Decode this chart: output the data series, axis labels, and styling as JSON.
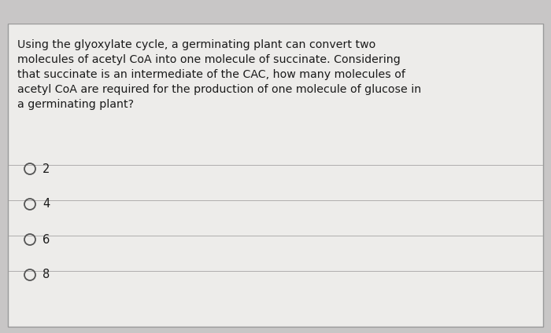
{
  "question_text_lines": [
    "Using the glyoxylate cycle, a germinating plant can convert two",
    "molecules of acetyl CoA into one molecule of succinate. Considering",
    "that succinate is an intermediate of the CAC, how many molecules of",
    "acetyl CoA are required for the production of one molecule of glucose in",
    "a germinating plant?"
  ],
  "options": [
    "2",
    "4",
    "6",
    "8"
  ],
  "background_color": "#c8c6c6",
  "box_color": "#edecea",
  "box_edge_color": "#999999",
  "text_color": "#1a1a1a",
  "divider_color": "#b0aeae",
  "question_fontsize": 10.2,
  "option_fontsize": 10.5,
  "circle_color": "#555555",
  "top_bar_color": "#c8c6c6"
}
